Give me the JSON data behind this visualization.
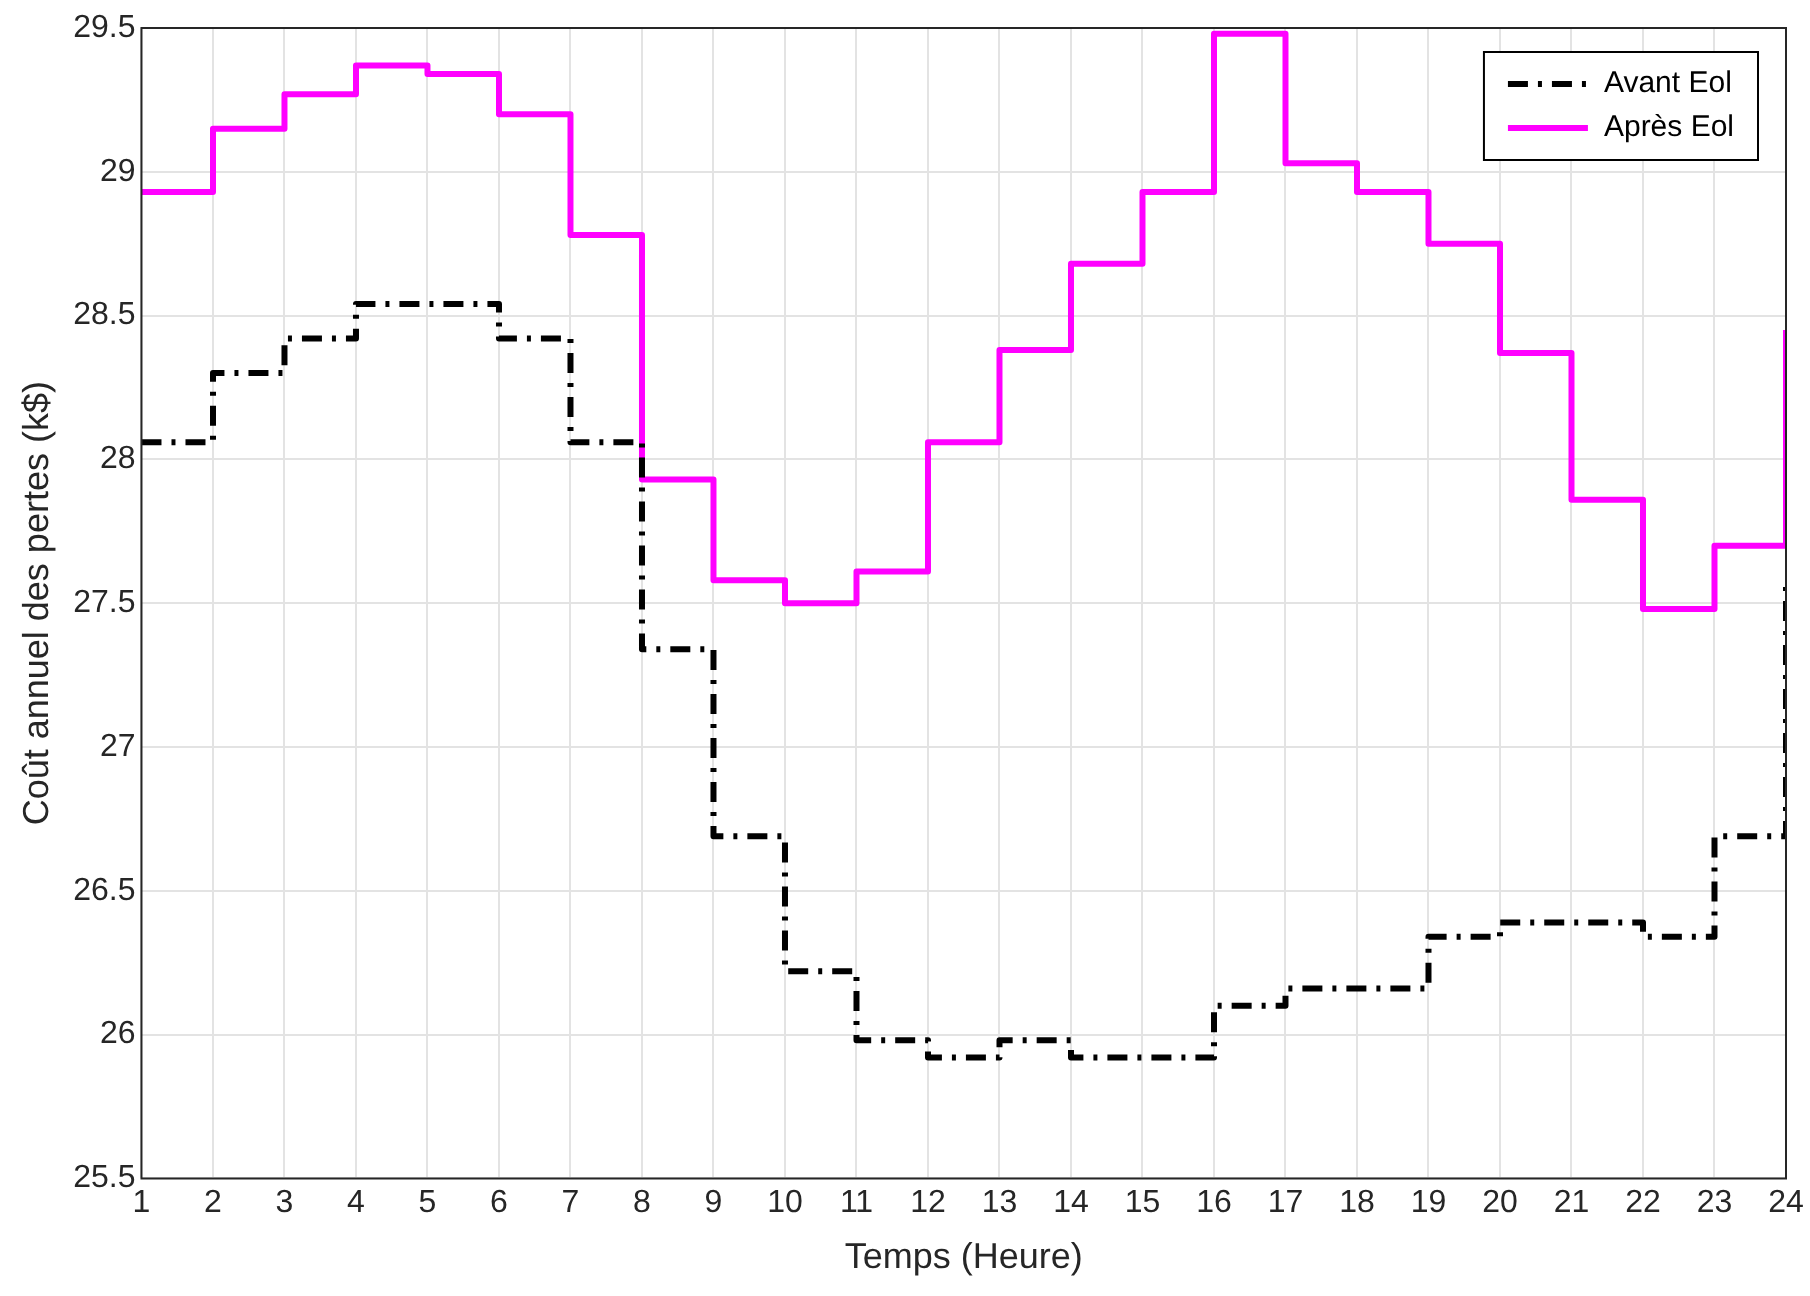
{
  "chart_data": {
    "type": "step",
    "xlabel": "Temps (Heure)",
    "ylabel": "Coût annuel des pertes (k$)",
    "x": [
      1,
      2,
      3,
      4,
      5,
      6,
      7,
      8,
      9,
      10,
      11,
      12,
      13,
      14,
      15,
      16,
      17,
      18,
      19,
      20,
      21,
      22,
      23,
      24
    ],
    "xlim": [
      1,
      24
    ],
    "xticks": [
      1,
      2,
      3,
      4,
      5,
      6,
      7,
      8,
      9,
      10,
      11,
      12,
      13,
      14,
      15,
      16,
      17,
      18,
      19,
      20,
      21,
      22,
      23,
      24
    ],
    "ylim": [
      25.5,
      29.5
    ],
    "yticks": [
      25.5,
      26,
      26.5,
      27,
      27.5,
      28,
      28.5,
      29,
      29.5
    ],
    "grid": true,
    "legend": "top right",
    "marker": "none",
    "series": [
      {
        "name": "Avant Eol",
        "color": "#000000",
        "line_style": "dashed",
        "values": [
          28.06,
          28.3,
          28.42,
          28.54,
          28.54,
          28.42,
          28.06,
          27.34,
          26.69,
          26.22,
          25.98,
          25.92,
          25.98,
          25.92,
          25.92,
          26.1,
          26.16,
          26.16,
          26.34,
          26.39,
          26.39,
          26.34,
          26.69,
          27.58
        ]
      },
      {
        "name": "Après Eol",
        "color": "#ff00ff",
        "line_style": "solid",
        "values": [
          28.93,
          29.15,
          29.27,
          29.37,
          29.34,
          29.2,
          28.78,
          27.93,
          27.58,
          27.5,
          27.61,
          28.06,
          28.38,
          28.68,
          28.93,
          29.48,
          29.03,
          28.93,
          28.75,
          28.37,
          27.86,
          27.48,
          27.7,
          28.45
        ]
      }
    ]
  }
}
